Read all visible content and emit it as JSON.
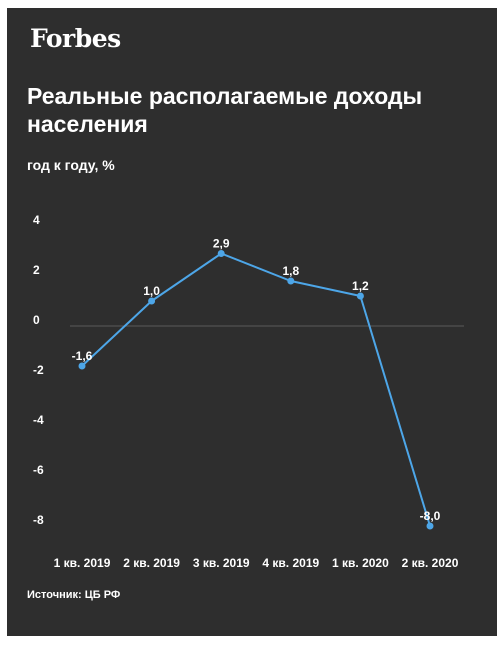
{
  "brand": {
    "logo_text": "Forbes"
  },
  "chart_data": {
    "type": "line",
    "title": "Реальные располагаемые доходы населения",
    "ylabel": "год к году, %",
    "xlabel": "",
    "categories": [
      "1 кв. 2019",
      "2 кв. 2019",
      "3 кв. 2019",
      "4 кв. 2019",
      "1 кв. 2020",
      "2 кв. 2020"
    ],
    "series": [
      {
        "values": [
          -1.6,
          1.0,
          2.9,
          1.8,
          1.2,
          -8.0
        ],
        "labels": [
          "-1,6",
          "1,0",
          "2,9",
          "1,8",
          "1,2",
          "-8,0"
        ]
      }
    ],
    "ylim": [
      -8,
      4
    ],
    "yticks": [
      4,
      2,
      0,
      -2,
      -4,
      -6,
      -8
    ],
    "grid": false,
    "legend": "none"
  },
  "source": "Источник: ЦБ РФ",
  "colors": {
    "background": "#2e2e2e",
    "line": "#4da6e8",
    "zero_line": "#5a5a5a",
    "text": "#ffffff"
  }
}
